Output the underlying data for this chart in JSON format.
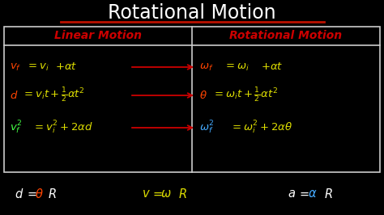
{
  "bg_color": "#000000",
  "title": "Rotational Motion",
  "title_color": "#ffffff",
  "title_underline_color": "#bb1100",
  "table_border_color": "#cccccc",
  "col1_header": "Linear Motion",
  "col2_header": "Rotational Motion",
  "header_color": "#cc0000",
  "arrow_color": "#cc0000",
  "red_color": "#ff4400",
  "yellow_color": "#dddd00",
  "green_color": "#44ff44",
  "blue_color": "#44aaff",
  "white_color": "#ffffff",
  "fig_w": 4.74,
  "fig_h": 2.66,
  "dpi": 100
}
